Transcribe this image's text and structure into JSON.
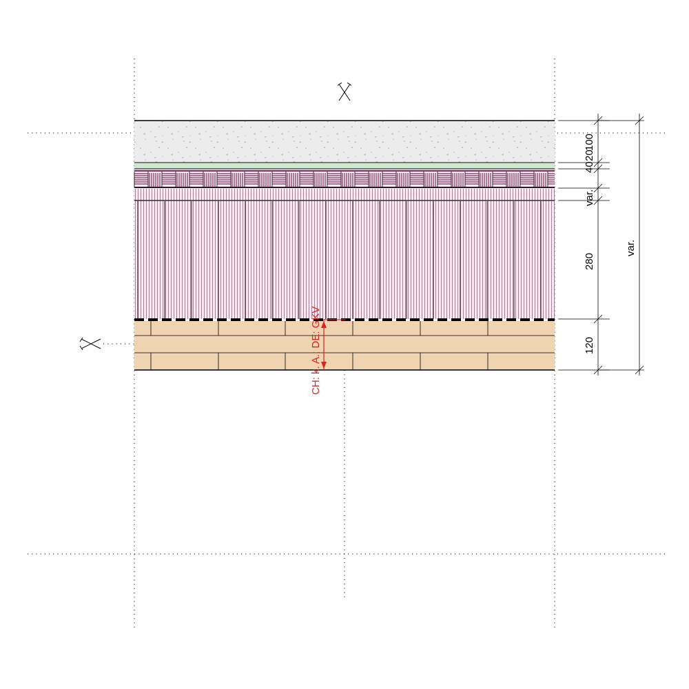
{
  "dimensions": {
    "d100": "100",
    "d40": "40",
    "d20": "20",
    "dvar_small": "var.",
    "d280": "280",
    "d120": "120",
    "dvar_total": "var."
  },
  "annotation": {
    "label": "CH: k. A.; DE: GKV"
  },
  "colors": {
    "concrete": "#ececec",
    "membrane": "#cfe8d2",
    "insulation_purple": "#7a2e5c",
    "insulation_fill": "#fbeaf1",
    "timber": "#f0d3b1",
    "red": "#e02020",
    "line": "#000000"
  }
}
